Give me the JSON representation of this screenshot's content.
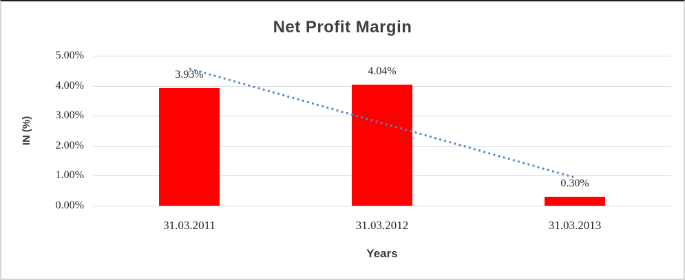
{
  "chart_data": {
    "type": "bar",
    "title": "Net Profit Margin",
    "xlabel": "Years",
    "ylabel": "IN (%)",
    "categories": [
      "31.03.2011",
      "31.03.2012",
      "31.03.2013"
    ],
    "values": [
      3.93,
      4.04,
      0.3
    ],
    "data_labels": [
      "3.93%",
      "4.04%",
      "0.30%"
    ],
    "yticks": [
      {
        "value": 0,
        "label": "0.00%"
      },
      {
        "value": 1,
        "label": "1.00%"
      },
      {
        "value": 2,
        "label": "2.00%"
      },
      {
        "value": 3,
        "label": "3.00%"
      },
      {
        "value": 4,
        "label": "4.00%"
      },
      {
        "value": 5,
        "label": "5.00%"
      }
    ],
    "ylim": [
      0,
      5
    ],
    "grid": true,
    "legend": "none",
    "bar_color": "#ff0000",
    "gridline_color": "#d9d9d9",
    "title_color": "#3f3f3f",
    "text_color": "#2b2b2b",
    "trendline": {
      "type": "linear",
      "style": "dotted",
      "color": "#4e87c8",
      "start_value": 4.57,
      "end_value": 0.94
    }
  }
}
